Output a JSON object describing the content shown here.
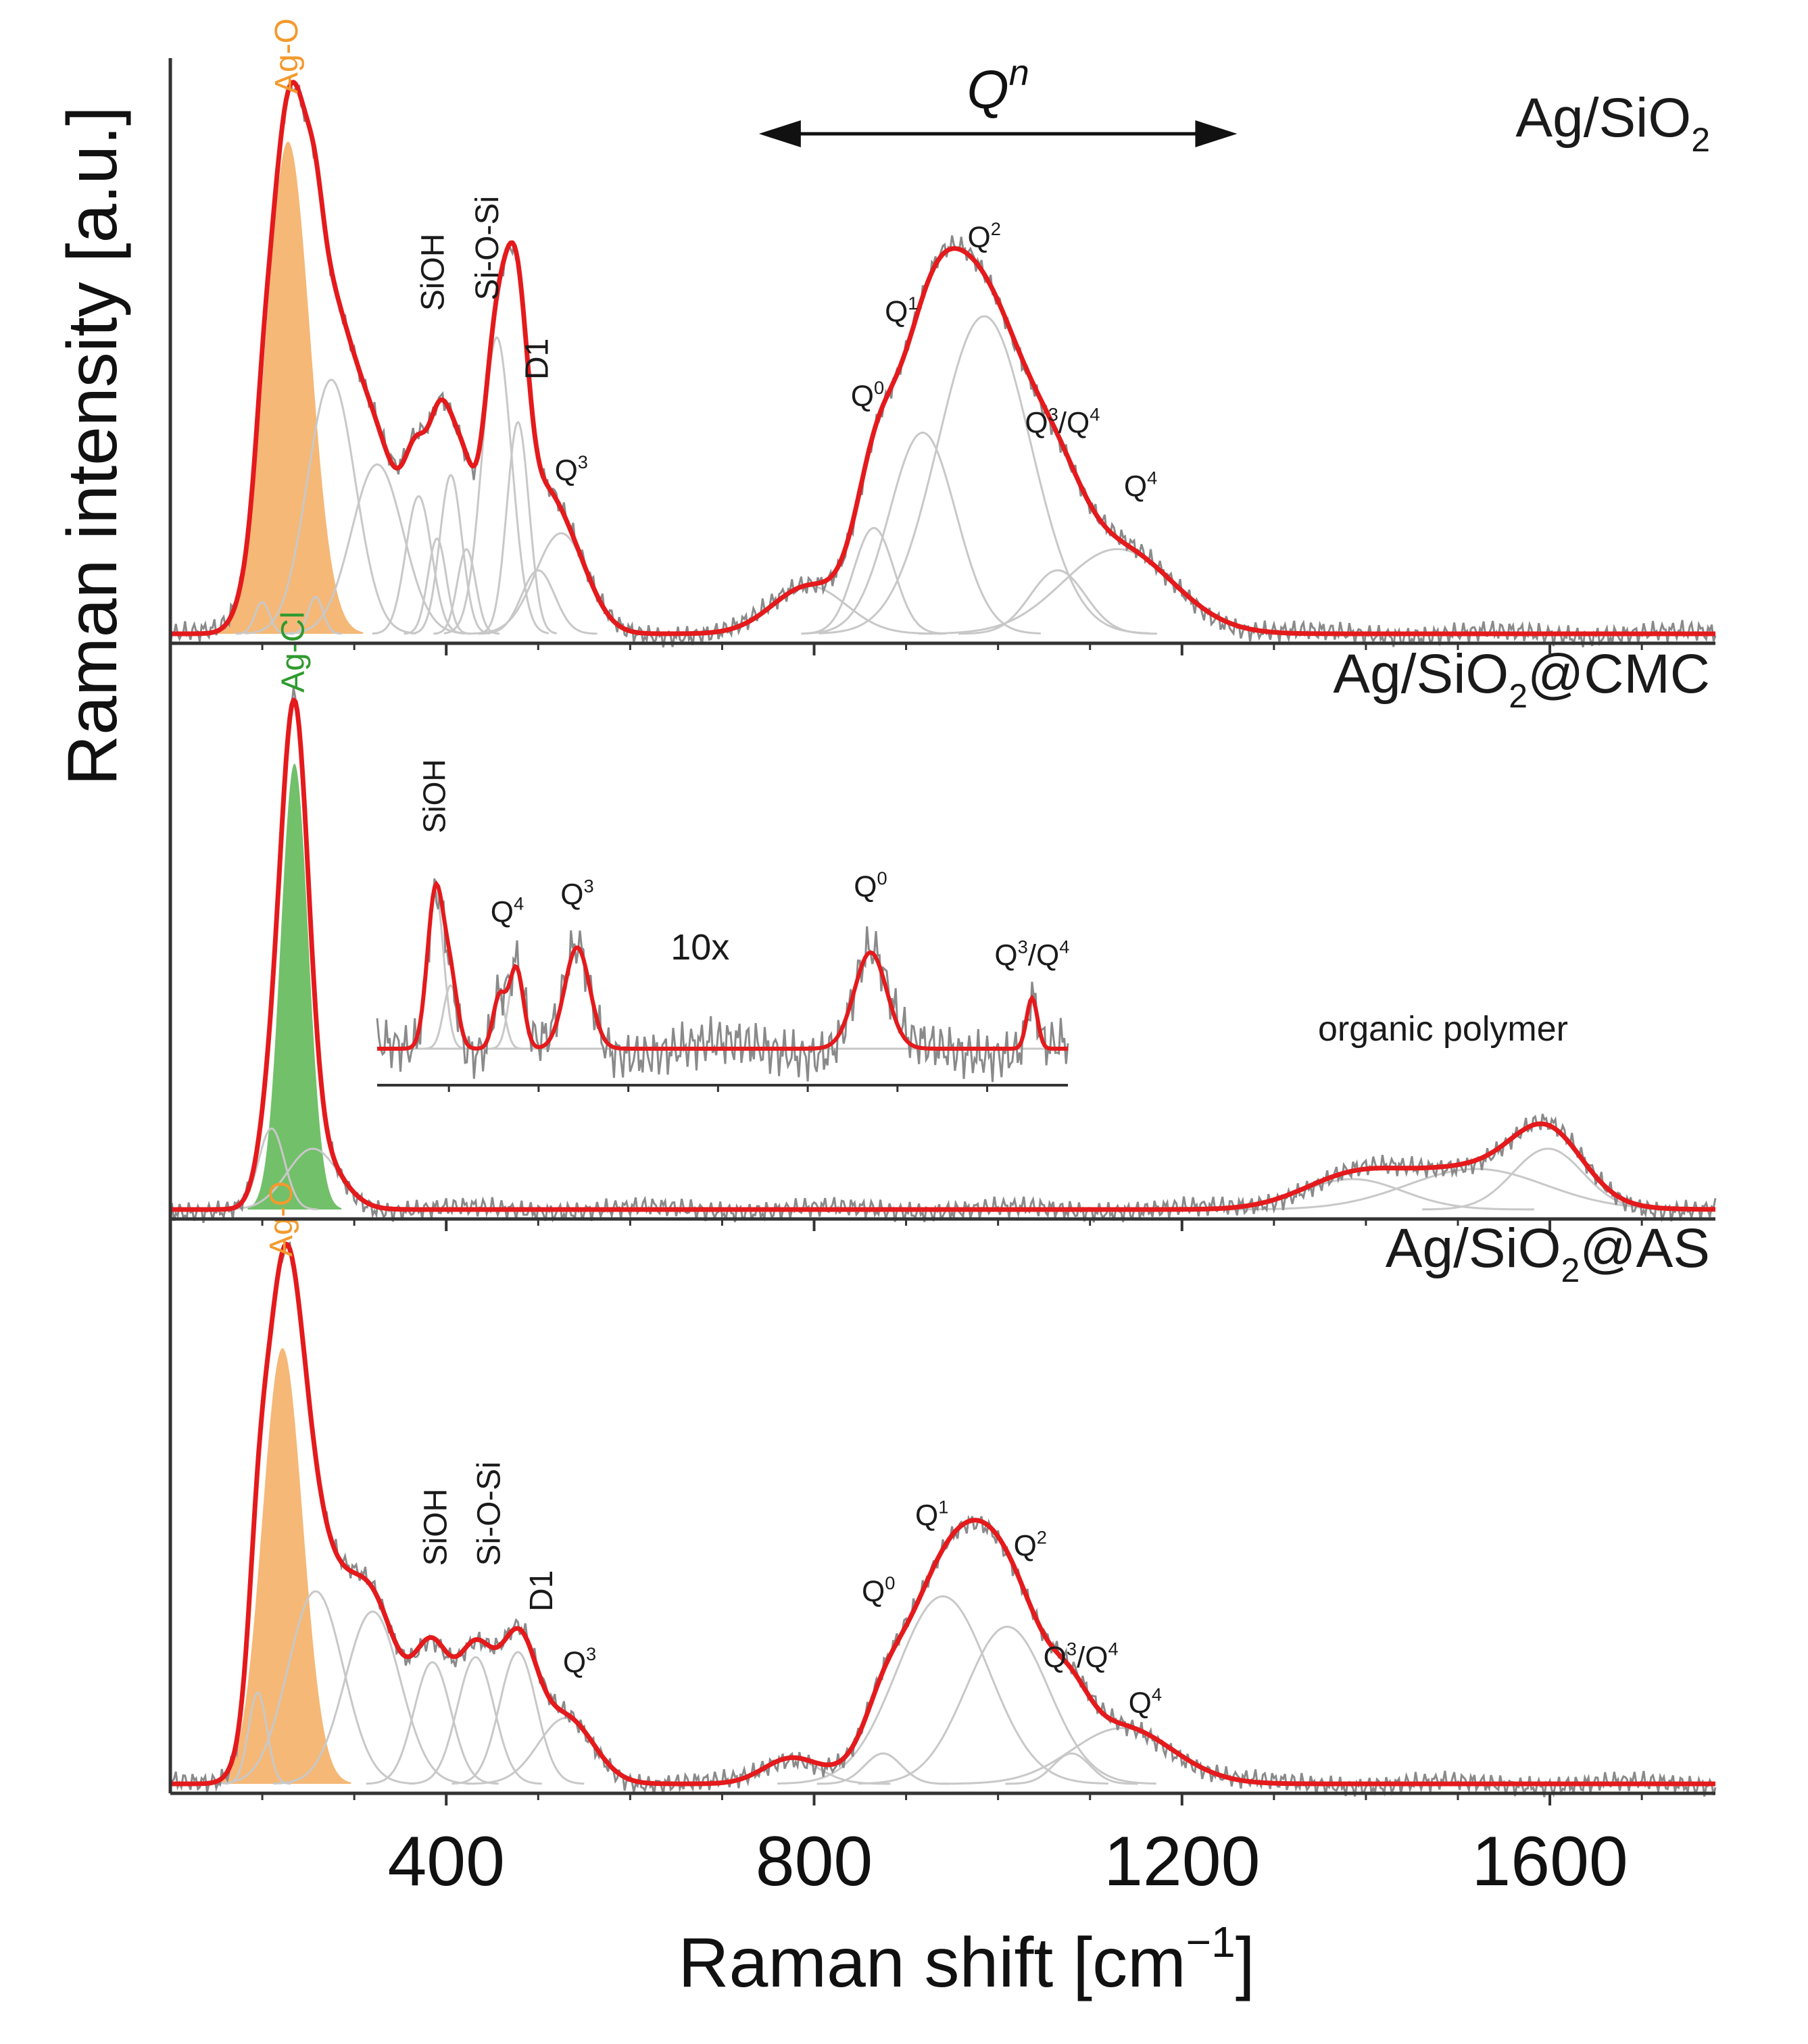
{
  "chart_data": {
    "type": "line",
    "title": "",
    "xlabel": "Raman shift [cm⁻¹]",
    "xlabel_base": "Raman shift [cm",
    "xlabel_exp": "−1",
    "xlabel_close": "]",
    "ylabel": "Raman intensity [a.u.]",
    "xlim": [
      100,
      1780
    ],
    "xticks": [
      400,
      800,
      1200,
      1600
    ],
    "xtick_labels": [
      "400",
      "800",
      "1200",
      "1600"
    ],
    "grid": false,
    "qn_arrow": {
      "label_base": "Q",
      "label_sup": "n",
      "x_from": 740,
      "x_to": 1260
    },
    "panels": [
      {
        "id": "ag-sio2",
        "label_pre": "Ag/SiO",
        "label_sub": "2",
        "label_post": "",
        "ylim": [
          0,
          1.08
        ],
        "fill_color": "#f5b877",
        "fill_name": "Ag-O",
        "fill_peak": {
          "center": 228,
          "height": 0.93,
          "width": 24
        },
        "components": [
          {
            "center": 200,
            "height": 0.06,
            "width": 8
          },
          {
            "center": 258,
            "height": 0.07,
            "width": 8
          },
          {
            "center": 275,
            "height": 0.48,
            "width": 26
          },
          {
            "center": 325,
            "height": 0.32,
            "width": 28
          },
          {
            "center": 370,
            "height": 0.26,
            "width": 14
          },
          {
            "center": 390,
            "height": 0.18,
            "width": 10
          },
          {
            "center": 405,
            "height": 0.3,
            "width": 12
          },
          {
            "center": 422,
            "height": 0.16,
            "width": 10
          },
          {
            "center": 455,
            "height": 0.56,
            "width": 16
          },
          {
            "center": 478,
            "height": 0.4,
            "width": 12
          },
          {
            "center": 500,
            "height": 0.12,
            "width": 18
          },
          {
            "center": 525,
            "height": 0.19,
            "width": 28
          },
          {
            "center": 795,
            "height": 0.09,
            "width": 40
          },
          {
            "center": 865,
            "height": 0.2,
            "width": 22
          },
          {
            "center": 918,
            "height": 0.38,
            "width": 36
          },
          {
            "center": 985,
            "height": 0.6,
            "width": 50
          },
          {
            "center": 1065,
            "height": 0.12,
            "width": 30
          },
          {
            "center": 1130,
            "height": 0.16,
            "width": 60
          }
        ],
        "peak_labels": [
          {
            "base": "Ag-O",
            "sup": "",
            "x": 228,
            "level": 1.02,
            "rotated": true,
            "color": "#f39a2e"
          },
          {
            "base": "SiOH",
            "sup": "",
            "x": 387,
            "level": 0.61,
            "rotated": true,
            "color": "#1a1a1a"
          },
          {
            "base": "Si-O-Si",
            "sup": "",
            "x": 446,
            "level": 0.63,
            "rotated": true,
            "color": "#1a1a1a"
          },
          {
            "base": "D1",
            "sup": "",
            "x": 500,
            "level": 0.48,
            "rotated": true,
            "color": "#1a1a1a"
          },
          {
            "base": "Q",
            "sup": "3",
            "x": 536,
            "level": 0.29,
            "rotated": false,
            "color": "#1a1a1a"
          },
          {
            "base": "Q",
            "sup": "0",
            "x": 858,
            "level": 0.43,
            "rotated": false,
            "color": "#1a1a1a"
          },
          {
            "base": "Q",
            "sup": "1",
            "x": 895,
            "level": 0.59,
            "rotated": false,
            "color": "#1a1a1a"
          },
          {
            "base": "Q",
            "sup": "2",
            "x": 985,
            "level": 0.73,
            "rotated": false,
            "color": "#1a1a1a"
          },
          {
            "base": "Q",
            "sup": "3",
            "x": 1070,
            "level": 0.38,
            "rotated": false,
            "sup2": "4",
            "color": "#1a1a1a"
          },
          {
            "base": "Q",
            "sup": "4",
            "x": 1155,
            "level": 0.26,
            "rotated": false,
            "color": "#1a1a1a"
          }
        ]
      },
      {
        "id": "ag-sio2-cmc",
        "label_pre": "Ag/SiO",
        "label_sub": "2",
        "label_post": "@CMC",
        "ylim": [
          0,
          1.08
        ],
        "fill_color": "#72c06a",
        "fill_name": "Ag-Cl",
        "fill_peak": {
          "center": 235,
          "height": 0.88,
          "width": 15
        },
        "components": [
          {
            "center": 210,
            "height": 0.16,
            "width": 14
          },
          {
            "center": 255,
            "height": 0.12,
            "width": 28
          },
          {
            "center": 1385,
            "height": 0.06,
            "width": 55
          },
          {
            "center": 1520,
            "height": 0.08,
            "width": 75
          },
          {
            "center": 1598,
            "height": 0.12,
            "width": 38
          }
        ],
        "peak_labels": [
          {
            "base": "Ag-Cl",
            "sup": "",
            "x": 235,
            "level": 1.02,
            "rotated": true,
            "color": "#2f9a2f"
          }
        ],
        "annotation": "organic polymer",
        "inset": {
          "magnification": "10x",
          "xlim": [
            320,
            1090
          ],
          "components": [
            {
              "center": 385,
              "height": 0.62,
              "width": 9
            },
            {
              "center": 402,
              "height": 0.25,
              "width": 8
            },
            {
              "center": 456,
              "height": 0.2,
              "width": 7
            },
            {
              "center": 475,
              "height": 0.32,
              "width": 8
            },
            {
              "center": 543,
              "height": 0.4,
              "width": 14
            },
            {
              "center": 870,
              "height": 0.38,
              "width": 18
            },
            {
              "center": 1050,
              "height": 0.2,
              "width": 6
            }
          ],
          "peak_labels": [
            {
              "base": "SiOH",
              "sup": "",
              "x": 385,
              "level": 0.85,
              "rotated": true
            },
            {
              "base": "Q",
              "sup": "4",
              "x": 465,
              "level": 0.5,
              "rotated": false
            },
            {
              "base": "Q",
              "sup": "3",
              "x": 543,
              "level": 0.57,
              "rotated": false
            },
            {
              "base": "Q",
              "sup": "0",
              "x": 870,
              "level": 0.6,
              "rotated": false
            },
            {
              "base": "Q",
              "sup": "3",
              "x": 1050,
              "level": 0.33,
              "rotated": false,
              "sup2": "4"
            }
          ]
        }
      },
      {
        "id": "ag-sio2-as",
        "label_pre": "Ag/SiO",
        "label_sub": "2",
        "label_post": "@AS",
        "ylim": [
          0,
          1.08
        ],
        "fill_color": "#f5b877",
        "fill_name": "Ag-O",
        "fill_peak": {
          "center": 222,
          "height": 0.86,
          "width": 22
        },
        "components": [
          {
            "center": 195,
            "height": 0.18,
            "width": 10
          },
          {
            "center": 258,
            "height": 0.38,
            "width": 30
          },
          {
            "center": 320,
            "height": 0.34,
            "width": 30
          },
          {
            "center": 385,
            "height": 0.24,
            "width": 20
          },
          {
            "center": 432,
            "height": 0.25,
            "width": 20
          },
          {
            "center": 478,
            "height": 0.26,
            "width": 20
          },
          {
            "center": 530,
            "height": 0.13,
            "width": 30
          },
          {
            "center": 775,
            "height": 0.05,
            "width": 30
          },
          {
            "center": 875,
            "height": 0.06,
            "width": 20
          },
          {
            "center": 940,
            "height": 0.37,
            "width": 50
          },
          {
            "center": 1010,
            "height": 0.31,
            "width": 45
          },
          {
            "center": 1080,
            "height": 0.06,
            "width": 20
          },
          {
            "center": 1135,
            "height": 0.11,
            "width": 55
          }
        ],
        "peak_labels": [
          {
            "base": "Ag-O",
            "sup": "",
            "x": 222,
            "level": 1.04,
            "rotated": true,
            "color": "#f39a2e"
          },
          {
            "base": "SiOH",
            "sup": "",
            "x": 390,
            "level": 0.43,
            "rotated": true,
            "color": "#1a1a1a"
          },
          {
            "base": "Si-O-Si",
            "sup": "",
            "x": 448,
            "level": 0.43,
            "rotated": true,
            "color": "#1a1a1a"
          },
          {
            "base": "D1",
            "sup": "",
            "x": 505,
            "level": 0.34,
            "rotated": true,
            "color": "#1a1a1a"
          },
          {
            "base": "Q",
            "sup": "3",
            "x": 545,
            "level": 0.22,
            "rotated": false,
            "color": "#1a1a1a"
          },
          {
            "base": "Q",
            "sup": "0",
            "x": 870,
            "level": 0.36,
            "rotated": false,
            "color": "#1a1a1a"
          },
          {
            "base": "Q",
            "sup": "1",
            "x": 928,
            "level": 0.51,
            "rotated": false,
            "color": "#1a1a1a"
          },
          {
            "base": "Q",
            "sup": "2",
            "x": 1035,
            "level": 0.45,
            "rotated": false,
            "color": "#1a1a1a"
          },
          {
            "base": "Q",
            "sup": "3",
            "x": 1090,
            "level": 0.23,
            "rotated": false,
            "sup2": "4",
            "color": "#1a1a1a"
          },
          {
            "base": "Q",
            "sup": "4",
            "x": 1160,
            "level": 0.14,
            "rotated": false,
            "color": "#1a1a1a"
          }
        ]
      }
    ],
    "colors": {
      "fit": "#e41a1c",
      "raw": "#8a8a8a",
      "component": "#c8c8c8",
      "axis": "#333333"
    }
  }
}
